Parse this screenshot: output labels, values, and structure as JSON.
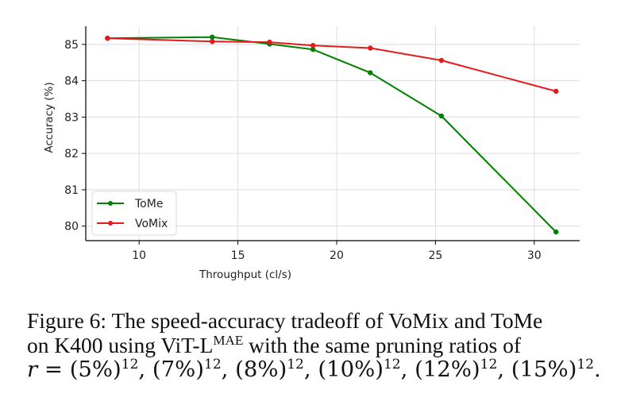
{
  "chart_data": {
    "type": "line",
    "title": "",
    "xlabel": "Throughput (cl/s)",
    "ylabel": "Accuracy (%)",
    "xlim": [
      7.3,
      32.3
    ],
    "ylim": [
      79.6,
      85.5
    ],
    "xticks": [
      10,
      15,
      20,
      25,
      30
    ],
    "yticks": [
      80,
      81,
      82,
      83,
      84,
      85
    ],
    "xtick_labels": [
      "10",
      "15",
      "20",
      "25",
      "30"
    ],
    "ytick_labels": [
      "80",
      "81",
      "82",
      "83",
      "84",
      "85"
    ],
    "grid": true,
    "legend_position": "lower-left",
    "series": [
      {
        "name": "ToMe",
        "color": "#008000",
        "x": [
          8.4,
          13.7,
          16.6,
          18.8,
          21.7,
          25.3,
          31.1
        ],
        "y": [
          85.17,
          85.2,
          85.01,
          84.86,
          84.22,
          83.03,
          79.84
        ]
      },
      {
        "name": "VoMix",
        "color": "#e41a1c",
        "x": [
          8.4,
          13.7,
          16.6,
          18.8,
          21.7,
          25.3,
          31.1
        ],
        "y": [
          85.17,
          85.08,
          85.06,
          84.97,
          84.9,
          84.56,
          83.71
        ]
      }
    ]
  },
  "caption": {
    "line1": "Figure 6: The speed-accuracy tradeoff of VoMix and ToMe",
    "line2_pre": "on K400 using ViT-L",
    "line2_sup": "MAE",
    "line2_post": " with the same pruning ratios of",
    "line3_var": "r",
    "line3_eq": " = ",
    "ratios": [
      "(5%)",
      "(7%)",
      "(8%)",
      "(10%)",
      "(12%)",
      "(15%)"
    ],
    "exponent": "12",
    "line3_end": "."
  }
}
